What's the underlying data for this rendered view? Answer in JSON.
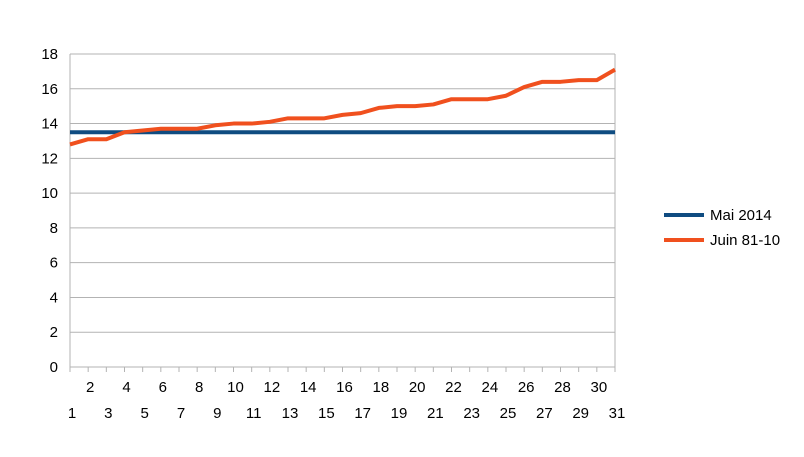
{
  "chart_data": {
    "type": "line",
    "x": [
      1,
      2,
      3,
      4,
      5,
      6,
      7,
      8,
      9,
      10,
      11,
      12,
      13,
      14,
      15,
      16,
      17,
      18,
      19,
      20,
      21,
      22,
      23,
      24,
      25,
      26,
      27,
      28,
      29,
      30,
      31
    ],
    "series": [
      {
        "name": "Mai 2014",
        "color": "#0f4c81",
        "values": [
          13.5,
          13.5,
          13.5,
          13.5,
          13.5,
          13.5,
          13.5,
          13.5,
          13.5,
          13.5,
          13.5,
          13.5,
          13.5,
          13.5,
          13.5,
          13.5,
          13.5,
          13.5,
          13.5,
          13.5,
          13.5,
          13.5,
          13.5,
          13.5,
          13.5,
          13.5,
          13.5,
          13.5,
          13.5,
          13.5,
          13.5
        ]
      },
      {
        "name": "Juin 81-10",
        "color": "#f0501e",
        "values": [
          12.8,
          13.1,
          13.1,
          13.5,
          13.6,
          13.7,
          13.7,
          13.7,
          13.9,
          14.0,
          14.0,
          14.1,
          14.3,
          14.3,
          14.3,
          14.5,
          14.6,
          14.9,
          15.0,
          15.0,
          15.1,
          15.4,
          15.4,
          15.4,
          15.6,
          16.1,
          16.4,
          16.4,
          16.5,
          16.5,
          17.1
        ]
      }
    ],
    "ylim": [
      0,
      18
    ],
    "yticks": [
      "0",
      "2",
      "4",
      "6",
      "8",
      "10",
      "12",
      "14",
      "16",
      "18"
    ],
    "xticks_upper": [
      "2",
      "4",
      "6",
      "8",
      "10",
      "12",
      "14",
      "16",
      "18",
      "20",
      "22",
      "24",
      "26",
      "28",
      "30"
    ],
    "xticks_lower": [
      "1",
      "3",
      "5",
      "7",
      "9",
      "11",
      "13",
      "15",
      "17",
      "19",
      "21",
      "23",
      "25",
      "27",
      "29",
      "31"
    ],
    "grid": "horizontal",
    "legend_position": "right"
  }
}
